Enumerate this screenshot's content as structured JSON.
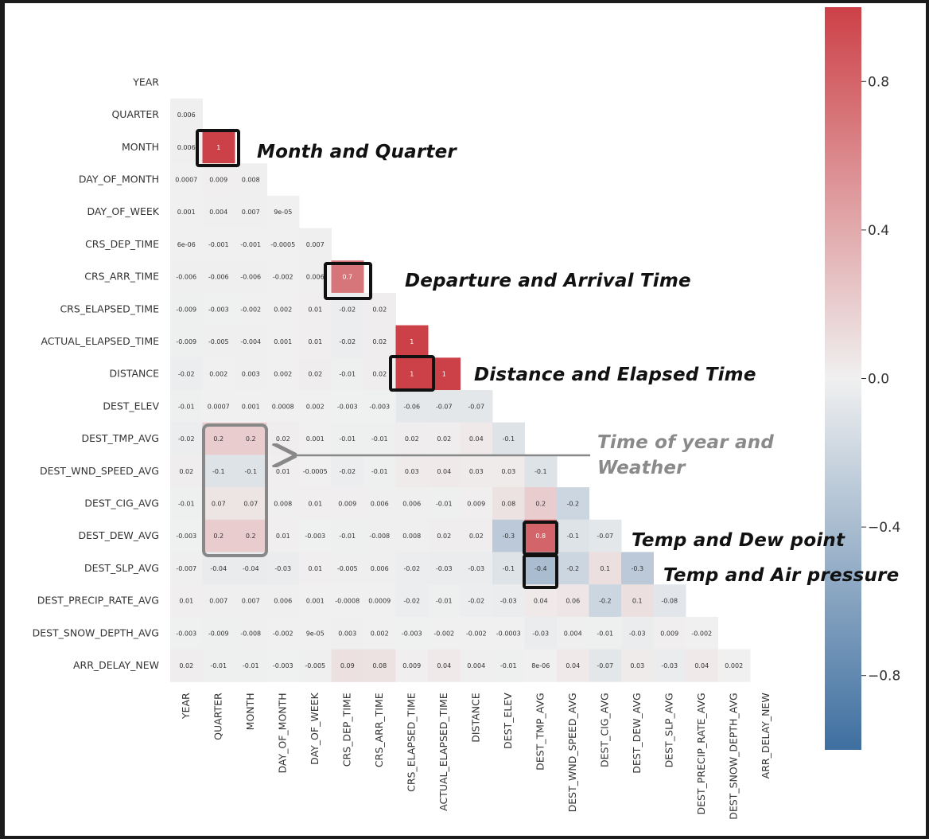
{
  "chart_data": {
    "type": "heatmap",
    "title": "",
    "variables": [
      "YEAR",
      "QUARTER",
      "MONTH",
      "DAY_OF_MONTH",
      "DAY_OF_WEEK",
      "CRS_DEP_TIME",
      "CRS_ARR_TIME",
      "CRS_ELAPSED_TIME",
      "ACTUAL_ELAPSED_TIME",
      "DISTANCE",
      "DEST_ELEV",
      "DEST_TMP_AVG",
      "DEST_WND_SPEED_AVG",
      "DEST_CIG_AVG",
      "DEST_DEW_AVG",
      "DEST_SLP_AVG",
      "DEST_PRECIP_RATE_AVG",
      "DEST_SNOW_DEPTH_AVG",
      "ARR_DELAY_NEW"
    ],
    "lower_triangle_labels": [
      [],
      [
        "0.006"
      ],
      [
        "0.006",
        "1"
      ],
      [
        "0.0007",
        "0.009",
        "0.008"
      ],
      [
        "0.001",
        "0.004",
        "0.007",
        "9e-05"
      ],
      [
        "6e-06",
        "-0.001",
        "-0.001",
        "-0.0005",
        "0.007"
      ],
      [
        "-0.006",
        "-0.006",
        "-0.006",
        "-0.002",
        "0.006",
        "0.7"
      ],
      [
        "-0.009",
        "-0.003",
        "-0.002",
        "0.002",
        "0.01",
        "-0.02",
        "0.02"
      ],
      [
        "-0.009",
        "-0.005",
        "-0.004",
        "0.001",
        "0.01",
        "-0.02",
        "0.02",
        "1"
      ],
      [
        "-0.02",
        "0.002",
        "0.003",
        "0.002",
        "0.02",
        "-0.01",
        "0.02",
        "1",
        "1"
      ],
      [
        "-0.01",
        "0.0007",
        "0.001",
        "0.0008",
        "0.002",
        "-0.003",
        "-0.003",
        "-0.06",
        "-0.07",
        "-0.07"
      ],
      [
        "-0.02",
        "0.2",
        "0.2",
        "0.02",
        "0.001",
        "-0.01",
        "-0.01",
        "0.02",
        "0.02",
        "0.04",
        "-0.1"
      ],
      [
        "0.02",
        "-0.1",
        "-0.1",
        "0.01",
        "-0.0005",
        "-0.02",
        "-0.01",
        "0.03",
        "0.04",
        "0.03",
        "0.03",
        "-0.1"
      ],
      [
        "-0.01",
        "0.07",
        "0.07",
        "0.008",
        "0.01",
        "0.009",
        "0.006",
        "0.006",
        "-0.01",
        "0.009",
        "0.08",
        "0.2",
        "-0.2"
      ],
      [
        "-0.003",
        "0.2",
        "0.2",
        "0.01",
        "-0.003",
        "-0.01",
        "-0.008",
        "0.008",
        "0.02",
        "0.02",
        "-0.3",
        "0.8",
        "-0.1",
        "-0.07"
      ],
      [
        "-0.007",
        "-0.04",
        "-0.04",
        "-0.03",
        "0.01",
        "-0.005",
        "0.006",
        "-0.02",
        "-0.03",
        "-0.03",
        "-0.1",
        "-0.4",
        "-0.2",
        "0.1",
        "-0.3"
      ],
      [
        "0.01",
        "0.007",
        "0.007",
        "0.006",
        "0.001",
        "-0.0008",
        "0.0009",
        "-0.02",
        "-0.01",
        "-0.02",
        "-0.03",
        "0.04",
        "0.06",
        "-0.2",
        "0.1",
        "-0.08"
      ],
      [
        "-0.003",
        "-0.009",
        "-0.008",
        "-0.002",
        "9e-05",
        "0.003",
        "0.002",
        "-0.003",
        "-0.002",
        "-0.002",
        "-0.0003",
        "-0.03",
        "0.004",
        "-0.01",
        "-0.03",
        "0.009",
        "-0.002"
      ],
      [
        "0.02",
        "-0.01",
        "-0.01",
        "-0.003",
        "-0.005",
        "0.09",
        "0.08",
        "0.009",
        "0.04",
        "0.004",
        "-0.01",
        "8e-06",
        "0.04",
        "-0.07",
        "0.03",
        "-0.03",
        "0.04",
        "0.002"
      ]
    ],
    "colorbar": {
      "range": [
        -1,
        1
      ],
      "ticks": [
        -0.8,
        -0.4,
        0.0,
        0.4,
        0.8
      ],
      "tick_labels": [
        "−0.8",
        "−0.4",
        "0.0",
        "0.4",
        "0.8"
      ],
      "colors": {
        "negative": "#3e6fa0",
        "neutral": "#f0f0f0",
        "positive": "#cc4147"
      }
    },
    "annotations": [
      {
        "text": "Month and Quarter",
        "cells": [
          [
            2,
            1
          ]
        ]
      },
      {
        "text": "Departure and Arrival Time",
        "cells": [
          [
            6,
            5
          ]
        ]
      },
      {
        "text": "Distance and Elapsed Time",
        "cells": [
          [
            9,
            7
          ]
        ]
      },
      {
        "text": "Time of year and Weather",
        "cells": [
          [
            11,
            1
          ],
          [
            11,
            2
          ],
          [
            12,
            1
          ],
          [
            12,
            2
          ],
          [
            13,
            1
          ],
          [
            13,
            2
          ],
          [
            14,
            1
          ],
          [
            14,
            2
          ]
        ],
        "style": "gray-with-arrow"
      },
      {
        "text": "Temp and Dew point",
        "cells": [
          [
            14,
            11
          ]
        ]
      },
      {
        "text": "Temp and Air pressure",
        "cells": [
          [
            15,
            11
          ]
        ]
      }
    ]
  }
}
